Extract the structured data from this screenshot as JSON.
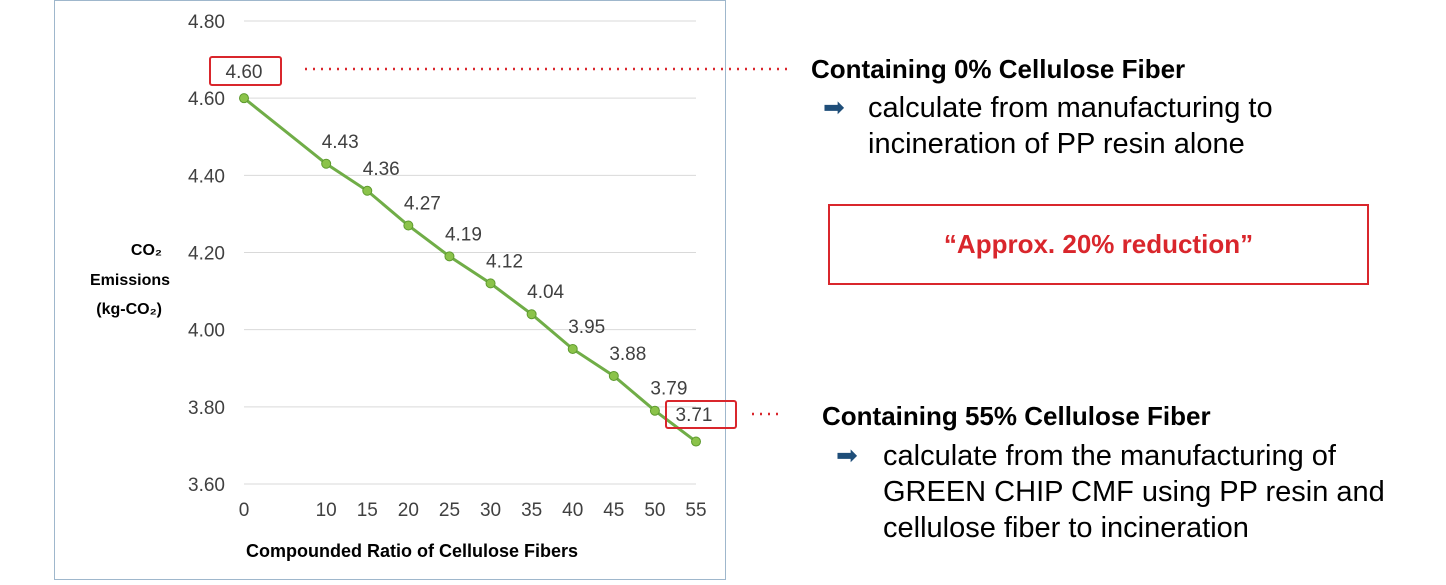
{
  "chart_data": {
    "type": "line",
    "x": [
      0,
      10,
      15,
      20,
      25,
      30,
      35,
      40,
      45,
      50,
      55
    ],
    "series": [
      {
        "values": [
          4.6,
          4.43,
          4.36,
          4.27,
          4.19,
          4.12,
          4.04,
          3.95,
          3.88,
          3.79,
          3.71
        ]
      }
    ],
    "data_labels": [
      "4.60",
      "4.43",
      "4.36",
      "4.27",
      "4.19",
      "4.12",
      "4.04",
      "3.95",
      "3.88",
      "3.79",
      "3.71"
    ],
    "y_tick_labels": [
      "4.80",
      "4.60",
      "4.40",
      "4.20",
      "4.00",
      "3.80",
      "3.60"
    ],
    "x_tick_labels": [
      "0",
      "10",
      "15",
      "20",
      "25",
      "30",
      "35",
      "40",
      "45",
      "50",
      "55"
    ],
    "ylim": [
      3.6,
      4.8
    ],
    "grid": true,
    "xlabel": "Compounded Ratio of Cellulose Fibers",
    "ylabel_line1": "CO₂",
    "ylabel_line2": "Emissions",
    "ylabel_line3": "(kg-CO₂)",
    "line_color": "#70ad47"
  },
  "annotations": {
    "top_head": "Containing 0% Cellulose Fiber",
    "top_body_line1": "calculate from manufacturing to",
    "top_body_line2": "incineration of PP resin alone",
    "reduction": "“Approx. 20% reduction”",
    "bottom_head": "Containing 55% Cellulose Fiber",
    "bottom_body_line1": "calculate from the manufacturing of",
    "bottom_body_line2": "GREEN CHIP CMF using PP resin and",
    "bottom_body_line3": "cellulose fiber to incineration",
    "arrow_icon": "➡",
    "highlight_color": "#d9262c",
    "arrow_color": "#1f4e79"
  }
}
